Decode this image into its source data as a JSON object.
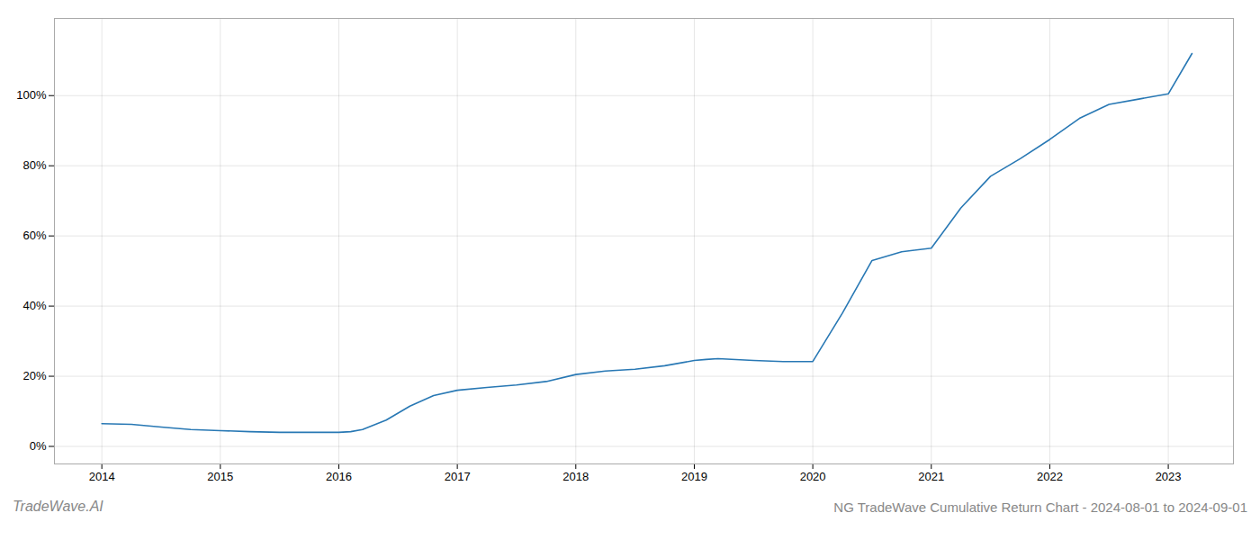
{
  "chart_data": {
    "type": "line",
    "title": "NG TradeWave Cumulative Return Chart - 2024-08-01 to 2024-09-01",
    "annotations": [
      "TradeWave.AI"
    ],
    "color": "#2878b4",
    "x": [
      2014.0,
      2014.25,
      2014.5,
      2014.75,
      2015.0,
      2015.25,
      2015.5,
      2015.75,
      2016.0,
      2016.1,
      2016.2,
      2016.4,
      2016.6,
      2016.8,
      2017.0,
      2017.25,
      2017.5,
      2017.75,
      2018.0,
      2018.25,
      2018.5,
      2018.75,
      2019.0,
      2019.1,
      2019.2,
      2019.5,
      2019.75,
      2020.0,
      2020.25,
      2020.5,
      2020.75,
      2021.0,
      2021.25,
      2021.5,
      2021.75,
      2022.0,
      2022.25,
      2022.5,
      2022.75,
      2023.0,
      2023.2
    ],
    "values": [
      0.065,
      0.063,
      0.055,
      0.048,
      0.045,
      0.042,
      0.04,
      0.04,
      0.04,
      0.042,
      0.048,
      0.075,
      0.115,
      0.145,
      0.16,
      0.168,
      0.175,
      0.185,
      0.205,
      0.215,
      0.22,
      0.23,
      0.245,
      0.248,
      0.25,
      0.245,
      0.242,
      0.242,
      0.38,
      0.53,
      0.555,
      0.565,
      0.68,
      0.77,
      0.82,
      0.875,
      0.935,
      0.975,
      0.99,
      1.005,
      1.12
    ],
    "xlim": [
      2013.6,
      2023.55
    ],
    "xticks": [
      2014,
      2015,
      2016,
      2017,
      2018,
      2019,
      2020,
      2021,
      2022,
      2023
    ],
    "ylim": [
      -0.05,
      1.22
    ],
    "yticks": [
      {
        "value": 0.0,
        "label": "0%"
      },
      {
        "value": 0.2,
        "label": "20%"
      },
      {
        "value": 0.4,
        "label": "40%"
      },
      {
        "value": 0.6,
        "label": "60%"
      },
      {
        "value": 0.8,
        "label": "80%"
      },
      {
        "value": 1.0,
        "label": "100%"
      }
    ],
    "grid": true
  }
}
